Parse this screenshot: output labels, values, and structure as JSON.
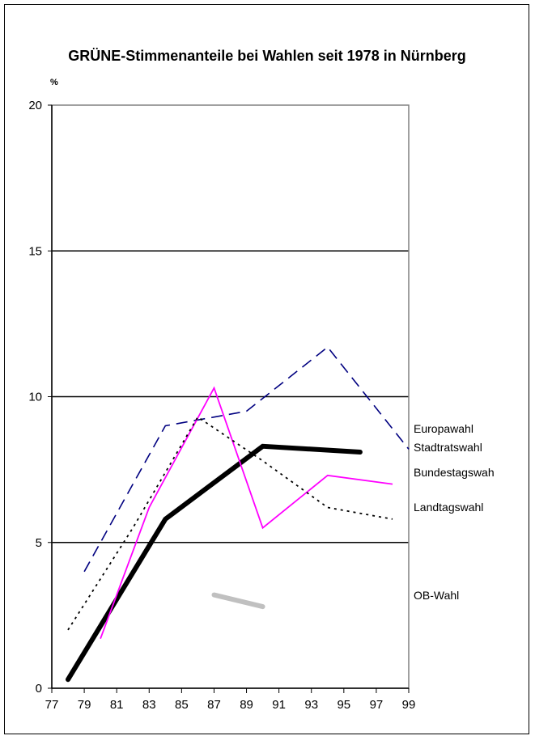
{
  "chart_data": {
    "type": "line",
    "title": "GRÜNE-Stimmenanteile bei Wahlen seit 1978 in Nürnberg",
    "ylabel": "%",
    "xlabel": "",
    "ylim": [
      0,
      20
    ],
    "xlim": [
      77,
      99
    ],
    "yticks": [
      "0",
      "5",
      "10",
      "15",
      "20"
    ],
    "xticks": [
      "77",
      "79",
      "81",
      "83",
      "85",
      "87",
      "89",
      "91",
      "93",
      "95",
      "97",
      "99"
    ],
    "grid": "horizontal at 5, 10, 15",
    "legend_position": "right",
    "series": [
      {
        "name": "Europawahl",
        "style": "dashed",
        "color": "#000080",
        "points": [
          [
            79,
            4.0
          ],
          [
            84,
            9.0
          ],
          [
            89,
            9.5
          ],
          [
            94,
            11.7
          ],
          [
            99,
            8.2
          ]
        ]
      },
      {
        "name": "Stadtratswahl",
        "style": "solid-bold",
        "color": "#000000",
        "points": [
          [
            78,
            0.3
          ],
          [
            84,
            5.8
          ],
          [
            90,
            8.3
          ],
          [
            96,
            8.1
          ]
        ]
      },
      {
        "name": "Bundestagswah",
        "style": "solid",
        "color": "#ff00ff",
        "points": [
          [
            80,
            1.7
          ],
          [
            83,
            6.2
          ],
          [
            87,
            10.3
          ],
          [
            90,
            5.5
          ],
          [
            94,
            7.3
          ],
          [
            98,
            7.0
          ]
        ]
      },
      {
        "name": "Landtagswahl",
        "style": "dotted",
        "color": "#000000",
        "points": [
          [
            78,
            2.0
          ],
          [
            82,
            5.5
          ],
          [
            86,
            9.3
          ],
          [
            90,
            7.8
          ],
          [
            94,
            6.2
          ],
          [
            98,
            5.8
          ]
        ]
      },
      {
        "name": "OB-Wahl",
        "style": "solid-bold",
        "color": "#c0c0c0",
        "points": [
          [
            87,
            3.2
          ],
          [
            90,
            2.8
          ]
        ]
      }
    ]
  }
}
